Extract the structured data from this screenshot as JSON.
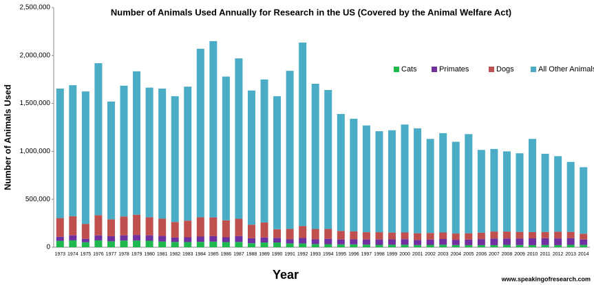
{
  "chart_data": {
    "type": "stacked_bar",
    "title": "Number of Animals Used Annually for Research in the US (Covered by the Animal Welfare Act)",
    "x_label": "Year",
    "y_label": "Number of Animals Used",
    "source": "www.speakingofresearch.com",
    "legend": "upper right",
    "categories": [
      "1973",
      "1974",
      "1975",
      "1976",
      "1977",
      "1978",
      "1979",
      "1980",
      "1981",
      "1982",
      "1983",
      "1984",
      "1985",
      "1986",
      "1987",
      "1988",
      "1989",
      "1990",
      "1991",
      "1992",
      "1993",
      "1994",
      "1995",
      "1996",
      "1997",
      "1998",
      "1999",
      "2000",
      "2001",
      "2002",
      "2003",
      "2004",
      "2005",
      "2006",
      "2007",
      "2008",
      "2009",
      "2010",
      "2011",
      "2012",
      "2013",
      "2014"
    ],
    "series": [
      {
        "name": "Cats",
        "color": "#1fb84f",
        "values": [
          67000,
          72000,
          52000,
          72000,
          62000,
          70000,
          70000,
          68000,
          60000,
          55000,
          54000,
          56000,
          59000,
          54000,
          55000,
          42000,
          50000,
          50000,
          40000,
          39000,
          33000,
          32000,
          30000,
          30000,
          27000,
          25000,
          26000,
          26000,
          23000,
          25000,
          26000,
          23000,
          22000,
          22000,
          22000,
          25000,
          23000,
          22000,
          23000,
          22000,
          25000,
          24000
        ]
      },
      {
        "name": "Primates",
        "color": "#7030a0",
        "values": [
          42000,
          52000,
          36000,
          51000,
          53000,
          54000,
          58000,
          56000,
          58000,
          46000,
          50000,
          55000,
          58000,
          50000,
          62000,
          52000,
          52000,
          48000,
          43000,
          58000,
          50000,
          56000,
          51000,
          52000,
          54000,
          56000,
          56000,
          58000,
          53000,
          55000,
          60000,
          55000,
          58000,
          63000,
          69000,
          66000,
          67000,
          71000,
          71000,
          70000,
          70000,
          57000
        ]
      },
      {
        "name": "Dogs",
        "color": "#c0504d",
        "values": [
          195000,
          199000,
          155000,
          211000,
          176000,
          197000,
          211000,
          188000,
          180000,
          162000,
          174000,
          201000,
          194000,
          177000,
          180000,
          141000,
          157000,
          90000,
          107000,
          124000,
          107000,
          102000,
          89000,
          83000,
          76000,
          76000,
          71000,
          70000,
          70000,
          69000,
          68000,
          65000,
          66000,
          67000,
          73000,
          73000,
          70000,
          65000,
          65000,
          70000,
          65000,
          60000
        ]
      },
      {
        "name": "All Other Animals",
        "color": "#4bacc6",
        "values": [
          1351000,
          1367000,
          1382000,
          1586000,
          1229000,
          1364000,
          1496000,
          1353000,
          1357000,
          1312000,
          1397000,
          1758000,
          1839000,
          1499000,
          1673000,
          1400000,
          1491000,
          1387000,
          1650000,
          1914000,
          1515000,
          1450000,
          1220000,
          1175000,
          1113000,
          1053000,
          1067000,
          1126000,
          1094000,
          981000,
          1036000,
          957000,
          1034000,
          863000,
          861000,
          836000,
          820000,
          972000,
          816000,
          788000,
          730000,
          694000
        ]
      }
    ],
    "ylim": [
      0,
      2500000
    ],
    "yticks": [
      0,
      {
        "value": 500000,
        "label": "500,000"
      },
      {
        "value": 1000000,
        "label": "1,000,000"
      },
      {
        "value": 1500000,
        "label": "1,500,000"
      },
      {
        "value": 2000000,
        "label": "2,000,000"
      },
      {
        "value": 2500000,
        "label": "2,500,000"
      }
    ]
  }
}
